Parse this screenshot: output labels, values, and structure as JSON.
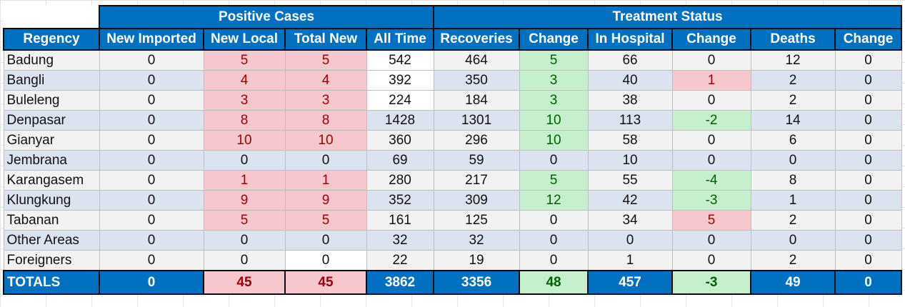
{
  "groups": {
    "positive": "Positive Cases",
    "treatment": "Treatment Status"
  },
  "columns": [
    "Regency",
    "New Imported",
    "New Local",
    "Total New",
    "All Time",
    "Recoveries",
    "Change",
    "In Hospital",
    "Change",
    "Deaths",
    "Change"
  ],
  "rows": [
    [
      "Badung",
      "0",
      "5",
      "5",
      "542",
      "464",
      "5",
      "66",
      "0",
      "12",
      "0"
    ],
    [
      "Bangli",
      "0",
      "4",
      "4",
      "392",
      "350",
      "3",
      "40",
      "1",
      "2",
      "0"
    ],
    [
      "Buleleng",
      "0",
      "3",
      "3",
      "224",
      "184",
      "3",
      "38",
      "0",
      "2",
      "0"
    ],
    [
      "Denpasar",
      "0",
      "8",
      "8",
      "1428",
      "1301",
      "10",
      "113",
      "-2",
      "14",
      "0"
    ],
    [
      "Gianyar",
      "0",
      "10",
      "10",
      "360",
      "296",
      "10",
      "58",
      "0",
      "6",
      "0"
    ],
    [
      "Jembrana",
      "0",
      "0",
      "0",
      "69",
      "59",
      "0",
      "10",
      "0",
      "0",
      "0"
    ],
    [
      "Karangasem",
      "0",
      "1",
      "1",
      "280",
      "217",
      "5",
      "55",
      "-4",
      "8",
      "0"
    ],
    [
      "Klungkung",
      "0",
      "9",
      "9",
      "352",
      "309",
      "12",
      "42",
      "-3",
      "1",
      "0"
    ],
    [
      "Tabanan",
      "0",
      "5",
      "5",
      "161",
      "125",
      "0",
      "34",
      "5",
      "2",
      "0"
    ],
    [
      "Other Areas",
      "0",
      "0",
      "0",
      "32",
      "32",
      "0",
      "0",
      "0",
      "0",
      "0"
    ],
    [
      "Foreigners",
      "0",
      "0",
      "0",
      "22",
      "19",
      "0",
      "1",
      "0",
      "2",
      "0"
    ]
  ],
  "totals": [
    "TOTALS",
    "0",
    "45",
    "45",
    "3862",
    "3356",
    "48",
    "457",
    "-3",
    "49",
    "0"
  ],
  "colors": {
    "header_blue": "#0070c0",
    "row_light": "#f2f2f2",
    "row_dark": "#dce3f0",
    "highlight_red_fill": "#f6c7cd",
    "highlight_red_text": "#9c0006",
    "highlight_green_fill": "#c6efce",
    "highlight_green_text": "#006100"
  }
}
